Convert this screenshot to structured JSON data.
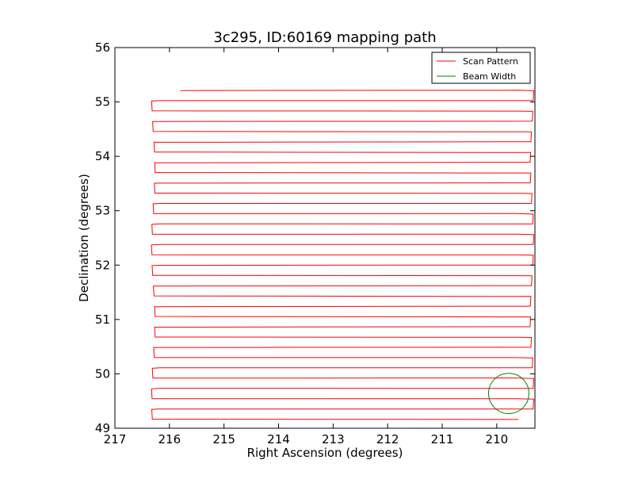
{
  "chart_data": {
    "type": "line",
    "title": "3c295, ID:60169 mapping path",
    "xlabel": "Right Ascension (degrees)",
    "ylabel": "Declination (degrees)",
    "xlim": [
      217,
      209.3
    ],
    "ylim": [
      49,
      56
    ],
    "x_inverted": true,
    "x_ticks": [
      "217",
      "216",
      "215",
      "214",
      "213",
      "212",
      "211",
      "210"
    ],
    "x_tick_values": [
      217,
      216,
      215,
      214,
      213,
      212,
      211,
      210
    ],
    "y_ticks": [
      "49",
      "50",
      "51",
      "52",
      "53",
      "54",
      "55",
      "56"
    ],
    "y_tick_values": [
      49,
      50,
      51,
      52,
      53,
      54,
      55,
      56
    ],
    "grid": false,
    "legend_position": "top-right",
    "legend": [
      "Scan Pattern",
      "Beam Width"
    ],
    "series": [
      {
        "name": "Scan Pattern",
        "color": "#ff0000",
        "scan_pattern": {
          "first_row_start_ra": 215.8,
          "start_dec": 55.21,
          "row_spacing_dec": 0.189,
          "row_count": 33,
          "ra_east": 216.2,
          "ra_west": 209.62,
          "turn_ra_east": 216.3,
          "turn_ra_west": 209.35
        }
      },
      {
        "name": "Beam Width",
        "color": "#008000",
        "center_ra": 209.78,
        "center_dec": 49.64,
        "radius_deg": 0.37
      }
    ]
  }
}
